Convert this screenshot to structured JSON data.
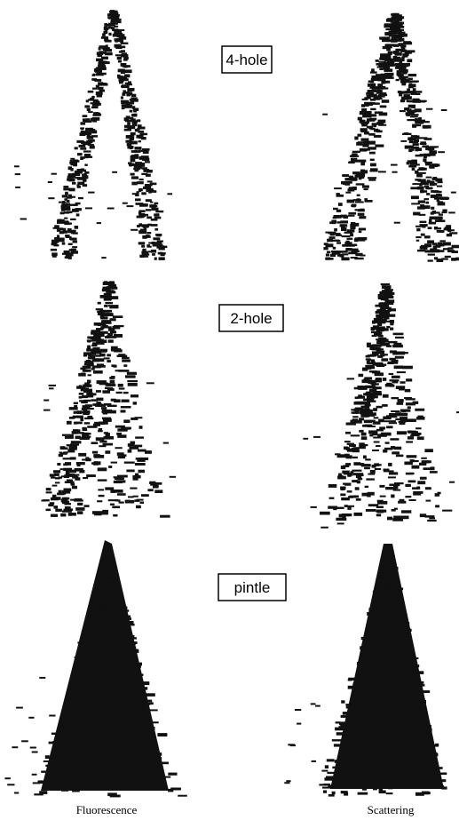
{
  "panels": [
    {
      "label": "4-hole"
    },
    {
      "label": "2-hole"
    },
    {
      "label": "pintle"
    }
  ],
  "columns": [
    "Fluorescence",
    "Scattering"
  ]
}
